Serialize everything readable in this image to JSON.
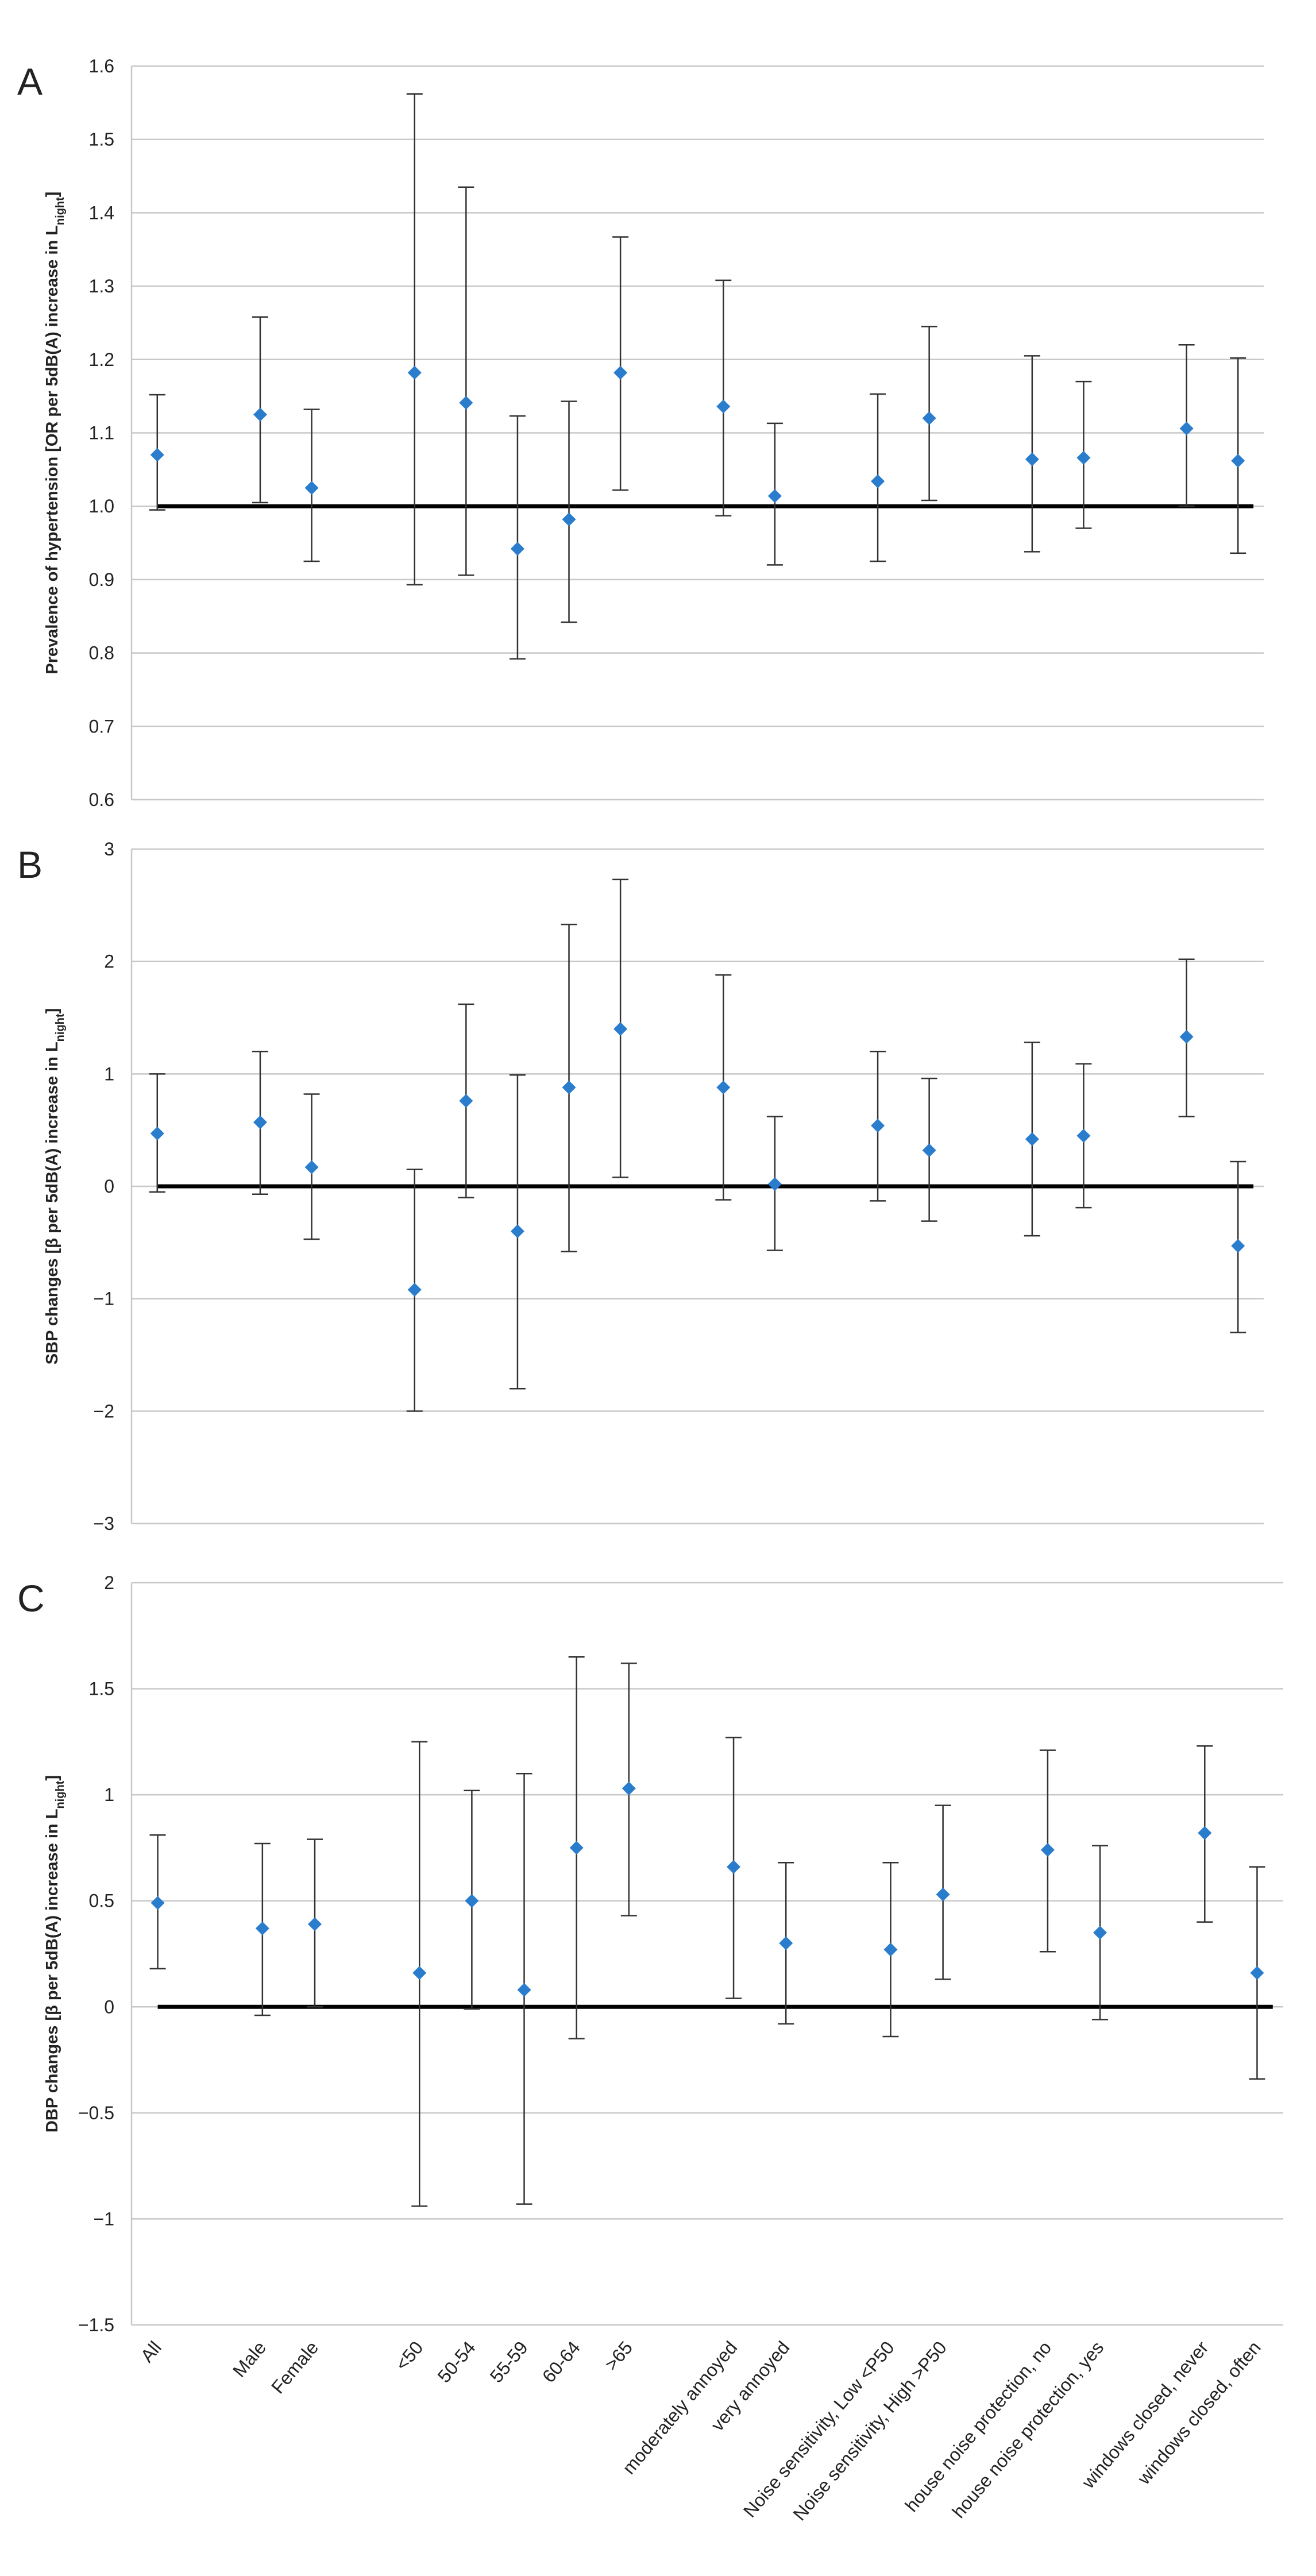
{
  "chart_data": [
    {
      "type": "errorbar",
      "panel": "A",
      "y_label": [
        "Prevalence of hypertension [OR per 5dB(A) increase in L",
        "night",
        "]"
      ],
      "values": [
        1.07,
        null,
        1.125,
        1.025,
        null,
        1.182,
        1.141,
        0.942,
        0.982,
        1.182,
        null,
        1.136,
        1.014,
        null,
        1.034,
        1.12,
        null,
        1.064,
        1.066,
        null,
        1.106,
        1.062
      ],
      "lower": [
        0.995,
        null,
        1.005,
        0.925,
        null,
        0.893,
        0.906,
        0.792,
        0.842,
        1.022,
        null,
        0.987,
        0.92,
        null,
        0.925,
        1.008,
        null,
        0.938,
        0.97,
        null,
        1.0,
        0.936
      ],
      "upper": [
        1.152,
        null,
        1.258,
        1.132,
        null,
        1.562,
        1.435,
        1.123,
        1.143,
        1.367,
        null,
        1.308,
        1.113,
        null,
        1.153,
        1.245,
        null,
        1.205,
        1.17,
        null,
        1.22,
        1.202
      ],
      "ylim": [
        0.6,
        1.6
      ],
      "yticks": [
        0.6,
        0.7,
        0.8,
        0.9,
        {
          "value": 1,
          "label": "1.0"
        },
        1.1,
        1.2,
        1.3,
        1.4,
        1.5,
        1.6
      ],
      "reference": 1,
      "color": "#2a7ccc",
      "grid": true
    },
    {
      "type": "errorbar",
      "panel": "B",
      "y_label": [
        "SBP changes [β per 5dB(A) increase in L",
        "night",
        "]"
      ],
      "values": [
        0.47,
        null,
        0.57,
        0.17,
        null,
        -0.92,
        0.76,
        -0.4,
        0.88,
        1.4,
        null,
        0.88,
        0.02,
        null,
        0.54,
        0.32,
        null,
        0.42,
        0.45,
        null,
        1.33,
        -0.53
      ],
      "lower": [
        -0.05,
        null,
        -0.07,
        -0.47,
        null,
        -2.0,
        -0.1,
        -1.8,
        -0.58,
        0.08,
        null,
        -0.12,
        -0.57,
        null,
        -0.13,
        -0.31,
        null,
        -0.44,
        -0.19,
        null,
        0.62,
        -1.3
      ],
      "upper": [
        1.0,
        null,
        1.2,
        0.82,
        null,
        0.15,
        1.62,
        0.99,
        2.33,
        2.73,
        null,
        1.88,
        0.62,
        null,
        1.2,
        0.96,
        null,
        1.28,
        1.09,
        null,
        2.02,
        0.22
      ],
      "ylim": [
        -3,
        3
      ],
      "yticks": [
        {
          "value": -3,
          "label": "−3"
        },
        {
          "value": -2,
          "label": "−2"
        },
        {
          "value": -1,
          "label": "−1"
        },
        0,
        1,
        2,
        3
      ],
      "reference": 0,
      "color": "#2a7ccc",
      "grid": true
    },
    {
      "type": "errorbar",
      "panel": "C",
      "y_label": [
        "DBP changes [β per 5dB(A) increase in L",
        "night",
        "]"
      ],
      "categories": [
        "All",
        null,
        "Male",
        "Female",
        null,
        "<50",
        "50-54",
        "55-59",
        "60-64",
        ">65",
        null,
        "moderately annoyed",
        "very annoyed",
        null,
        "Noise sensitivity, Low <P50",
        "Noise sensitivity, High >P50",
        null,
        "house noise protection, no",
        "house noise protection, yes",
        null,
        "windows closed, never",
        "windows closed, often"
      ],
      "values": [
        0.49,
        null,
        0.37,
        0.39,
        null,
        0.16,
        0.5,
        0.08,
        0.75,
        1.03,
        null,
        0.66,
        0.3,
        null,
        0.27,
        0.53,
        null,
        0.74,
        0.35,
        null,
        0.82,
        0.16
      ],
      "lower": [
        0.18,
        null,
        -0.04,
        0.0,
        null,
        -0.94,
        -0.01,
        -0.93,
        -0.15,
        0.43,
        null,
        0.04,
        -0.08,
        null,
        -0.14,
        0.13,
        null,
        0.26,
        -0.06,
        null,
        0.4,
        -0.34
      ],
      "upper": [
        0.81,
        null,
        0.77,
        0.79,
        null,
        1.25,
        1.02,
        1.1,
        1.65,
        1.62,
        null,
        1.27,
        0.68,
        null,
        0.68,
        0.95,
        null,
        1.21,
        0.76,
        null,
        1.23,
        0.66
      ],
      "ylim": [
        -1.5,
        2
      ],
      "yticks": [
        {
          "value": -1.5,
          "label": "−1.5"
        },
        {
          "value": -1,
          "label": "−1"
        },
        {
          "value": -0.5,
          "label": "−0.5"
        },
        0,
        0.5,
        1,
        1.5,
        2
      ],
      "reference": 0,
      "color": "#2a7ccc",
      "grid": true
    }
  ]
}
